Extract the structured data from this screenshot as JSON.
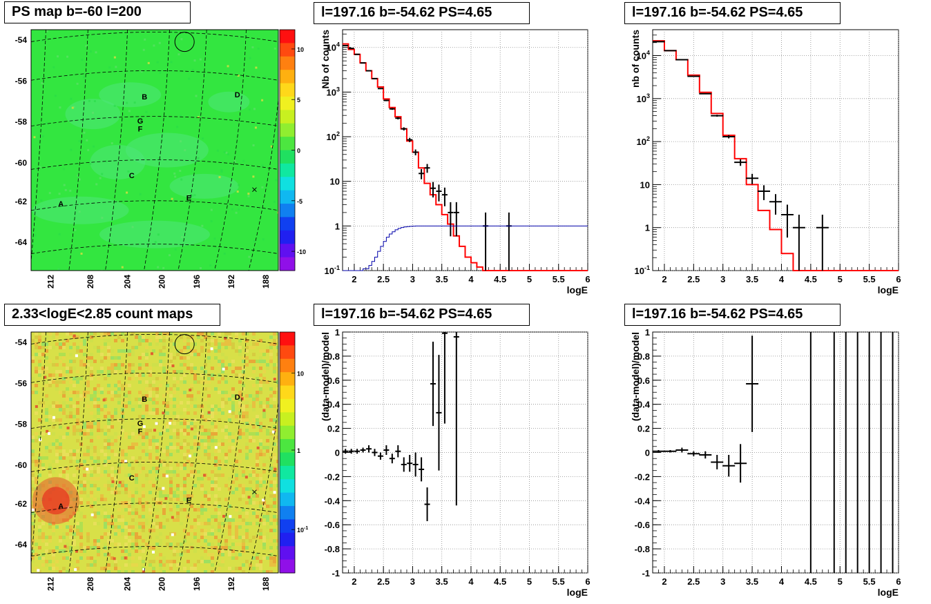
{
  "titles": {
    "map1": "PS map b=-60 l=200",
    "map2": "2.33<logE<2.85 count maps",
    "spec1": "l=197.16 b=-54.62 PS=4.65",
    "spec2": "l=197.16 b=-54.62 PS=4.65",
    "res1": "l=197.16 b=-54.62 PS=4.65",
    "res2": "l=197.16 b=-54.62 PS=4.65"
  },
  "colors": {
    "data": "#000000",
    "model": "#ff0000",
    "efficiency": "#0000aa",
    "grid": "#888888",
    "map1_background": "#33e640",
    "map2_background": "#d8e048"
  },
  "chart_data": [
    {
      "id": "map1",
      "type": "heatmap",
      "title": "PS map b=-60 l=200",
      "x_tick_labels": [
        "212",
        "208",
        "204",
        "200",
        "196",
        "192",
        "188"
      ],
      "y_tick_labels": [
        "-54",
        "-56",
        "-58",
        "-60",
        "-62",
        "-64"
      ],
      "colorbar_ticks": [
        "10",
        "5",
        "0",
        "-5",
        "-10"
      ],
      "zlim": [
        -12,
        12
      ],
      "sources": [
        {
          "label": "A",
          "l": 210.5,
          "b": -62.0
        },
        {
          "label": "B",
          "l": 200.7,
          "b": -56.7
        },
        {
          "label": "C",
          "l": 202.2,
          "b": -60.6
        },
        {
          "label": "D",
          "l": 189.8,
          "b": -56.6
        },
        {
          "label": "E",
          "l": 195.5,
          "b": -61.7
        },
        {
          "label": "G",
          "l": 201.2,
          "b": -57.9
        },
        {
          "label": "F",
          "l": 201.2,
          "b": -58.3
        }
      ]
    },
    {
      "id": "spec1",
      "type": "line",
      "title": "l=197.16 b=-54.62 PS=4.65",
      "xlabel": "logE",
      "ylabel": "Nb of counts",
      "xlim": [
        1.8,
        6
      ],
      "ylim": [
        0.1,
        25000
      ],
      "y_scale": "log",
      "x_ticks": [
        "2",
        "2.5",
        "3",
        "3.5",
        "4",
        "4.5",
        "5",
        "5.5",
        "6"
      ],
      "y_tick_labels": [
        "10^-1",
        "1",
        "10",
        "10^2",
        "10^3",
        "10^4"
      ],
      "grid": true,
      "series": [
        {
          "kind": "model-step",
          "edges": [
            1.8,
            1.9,
            2.0,
            2.1,
            2.2,
            2.3,
            2.4,
            2.5,
            2.6,
            2.7,
            2.8,
            2.9,
            3.0,
            3.1,
            3.2,
            3.3,
            3.4,
            3.5,
            3.6,
            3.7,
            3.8,
            3.9,
            4.0,
            4.1,
            4.2,
            6.0
          ],
          "values": [
            12000,
            9000,
            7000,
            4500,
            3000,
            2000,
            1300,
            700,
            450,
            280,
            150,
            80,
            45,
            20,
            9,
            5,
            3,
            1.8,
            1.1,
            0.6,
            0.35,
            0.2,
            0.15,
            0.12,
            0.1
          ]
        },
        {
          "kind": "data",
          "x": [
            1.85,
            1.95,
            2.05,
            2.15,
            2.25,
            2.35,
            2.45,
            2.55,
            2.65,
            2.75,
            2.85,
            2.95,
            3.05,
            3.15,
            3.25,
            3.35,
            3.45,
            3.55,
            3.65,
            3.75,
            4.25,
            4.65
          ],
          "y": [
            11000,
            9500,
            7000,
            4500,
            3000,
            2000,
            1200,
            650,
            420,
            260,
            150,
            85,
            45,
            15,
            20,
            7,
            6,
            5,
            2,
            2,
            1,
            1
          ],
          "err_low": [
            0,
            0,
            0,
            0,
            0,
            0,
            0,
            0,
            0,
            0,
            0,
            0,
            0,
            0,
            0,
            0,
            0,
            0,
            0,
            0,
            0,
            0
          ],
          "err_high": [
            0,
            0,
            0,
            0,
            0,
            0,
            0,
            0,
            0,
            0,
            0,
            0,
            0,
            0,
            0,
            0,
            0,
            0,
            0,
            0,
            0,
            0
          ]
        },
        {
          "kind": "efficiency-step",
          "edges": [
            1.8,
            2.15,
            2.25,
            2.3,
            2.35,
            2.4,
            2.45,
            2.5,
            2.55,
            2.6,
            2.65,
            2.7,
            2.75,
            2.8,
            2.85,
            2.9,
            2.95,
            3.0,
            3.05,
            3.1,
            6.0
          ],
          "values": [
            0.1,
            0.11,
            0.13,
            0.16,
            0.2,
            0.27,
            0.35,
            0.45,
            0.56,
            0.66,
            0.74,
            0.82,
            0.88,
            0.92,
            0.95,
            0.97,
            0.98,
            0.99,
            1.0,
            1.0
          ]
        }
      ]
    },
    {
      "id": "spec2",
      "type": "line",
      "title": "l=197.16 b=-54.62 PS=4.65",
      "xlabel": "logE",
      "ylabel": "nb of counts",
      "xlim": [
        1.8,
        6
      ],
      "ylim": [
        0.1,
        40000
      ],
      "y_scale": "log",
      "x_ticks": [
        "2",
        "2.5",
        "3",
        "3.5",
        "4",
        "4.5",
        "5",
        "5.5",
        "6"
      ],
      "y_tick_labels": [
        "10^-1",
        "1",
        "10",
        "10^2",
        "10^3",
        "10^4"
      ],
      "grid": true,
      "series": [
        {
          "kind": "model-step",
          "edges": [
            1.8,
            2.0,
            2.2,
            2.4,
            2.6,
            2.8,
            3.0,
            3.2,
            3.4,
            3.6,
            3.8,
            4.0,
            4.2,
            6.0
          ],
          "values": [
            22000,
            13000,
            8000,
            3500,
            1400,
            450,
            140,
            40,
            10,
            2.5,
            0.9,
            0.25,
            0.1
          ],
          "flat_tail": 0.1
        },
        {
          "kind": "data",
          "x": [
            1.9,
            2.1,
            2.3,
            2.5,
            2.7,
            2.9,
            3.1,
            3.3,
            3.5,
            3.7,
            3.9,
            4.1,
            4.3,
            4.7
          ],
          "y": [
            21000,
            13000,
            8000,
            3300,
            1300,
            400,
            130,
            33,
            14,
            7,
            4,
            2,
            1,
            1
          ],
          "err_low": [
            0,
            0,
            0,
            0,
            0,
            0,
            0,
            0,
            0,
            0,
            0,
            0,
            0,
            0
          ],
          "err_high": [
            0,
            0,
            0,
            0,
            0,
            0,
            0,
            0,
            0,
            0,
            0,
            0,
            0,
            0
          ]
        }
      ]
    },
    {
      "id": "map2",
      "type": "heatmap",
      "title": "2.33<logE<2.85 count maps",
      "x_tick_labels": [
        "212",
        "208",
        "204",
        "200",
        "196",
        "192",
        "188"
      ],
      "y_tick_labels": [
        "-54",
        "-56",
        "-58",
        "-60",
        "-62",
        "-64"
      ],
      "colorbar_ticks": [
        "10",
        "1",
        "10^-1"
      ],
      "z_scale": "log",
      "sources": [
        {
          "label": "A",
          "l": 210.5,
          "b": -62.0
        },
        {
          "label": "B",
          "l": 200.7,
          "b": -56.7
        },
        {
          "label": "C",
          "l": 202.2,
          "b": -60.6
        },
        {
          "label": "D",
          "l": 189.8,
          "b": -56.6
        },
        {
          "label": "E",
          "l": 195.5,
          "b": -61.7
        },
        {
          "label": "G",
          "l": 201.2,
          "b": -57.9
        },
        {
          "label": "F",
          "l": 201.2,
          "b": -58.3
        }
      ]
    },
    {
      "id": "res1",
      "type": "scatter",
      "title": "l=197.16 b=-54.62 PS=4.65",
      "xlabel": "logE",
      "ylabel": "(data-model)/model",
      "xlim": [
        1.8,
        6
      ],
      "ylim": [
        -1,
        1
      ],
      "x_ticks": [
        "2",
        "2.5",
        "3",
        "3.5",
        "4",
        "4.5",
        "5",
        "5.5",
        "6"
      ],
      "y_ticks": [
        "-1",
        "-0.8",
        "-0.6",
        "-0.4",
        "-0.2",
        "0",
        "0.2",
        "0.4",
        "0.6",
        "0.8",
        "1"
      ],
      "grid": true,
      "points": {
        "x": [
          1.85,
          1.95,
          2.05,
          2.15,
          2.25,
          2.35,
          2.45,
          2.55,
          2.65,
          2.75,
          2.85,
          2.95,
          3.05,
          3.15,
          3.25,
          3.35,
          3.45,
          3.55,
          3.75
        ],
        "y": [
          0.01,
          0.01,
          0.01,
          0.02,
          0.03,
          0.0,
          -0.03,
          0.02,
          -0.05,
          0.01,
          -0.1,
          -0.09,
          -0.1,
          -0.14,
          -0.43,
          0.57,
          0.33,
          0.99,
          0.96
        ],
        "err": [
          0.02,
          0.02,
          0.02,
          0.02,
          0.03,
          0.03,
          0.03,
          0.04,
          0.04,
          0.05,
          0.06,
          0.07,
          0.1,
          0.1,
          0.14,
          0.35,
          0.48,
          0.75,
          1.4
        ]
      }
    },
    {
      "id": "res2",
      "type": "scatter",
      "title": "l=197.16 b=-54.62 PS=4.65",
      "xlabel": "logE",
      "ylabel": "(data-model)/model",
      "xlim": [
        1.8,
        6
      ],
      "ylim": [
        -1,
        1
      ],
      "x_ticks": [
        "2",
        "2.5",
        "3",
        "3.5",
        "4",
        "4.5",
        "5",
        "5.5",
        "6"
      ],
      "y_ticks": [
        "-1",
        "-0.8",
        "-0.6",
        "-0.4",
        "-0.2",
        "0",
        "0.2",
        "0.4",
        "0.6",
        "0.8",
        "1"
      ],
      "grid": true,
      "points": {
        "x": [
          1.9,
          2.1,
          2.3,
          2.5,
          2.7,
          2.9,
          3.1,
          3.3,
          3.5
        ],
        "y": [
          0.01,
          0.01,
          0.02,
          -0.01,
          -0.02,
          -0.08,
          -0.11,
          -0.09,
          0.57
        ],
        "err": [
          0.01,
          0.01,
          0.02,
          0.02,
          0.03,
          0.06,
          0.09,
          0.16,
          0.4
        ]
      },
      "vertical_lines_x": [
        4.5,
        4.9,
        5.1,
        5.3,
        5.5,
        5.7,
        5.9
      ]
    }
  ]
}
